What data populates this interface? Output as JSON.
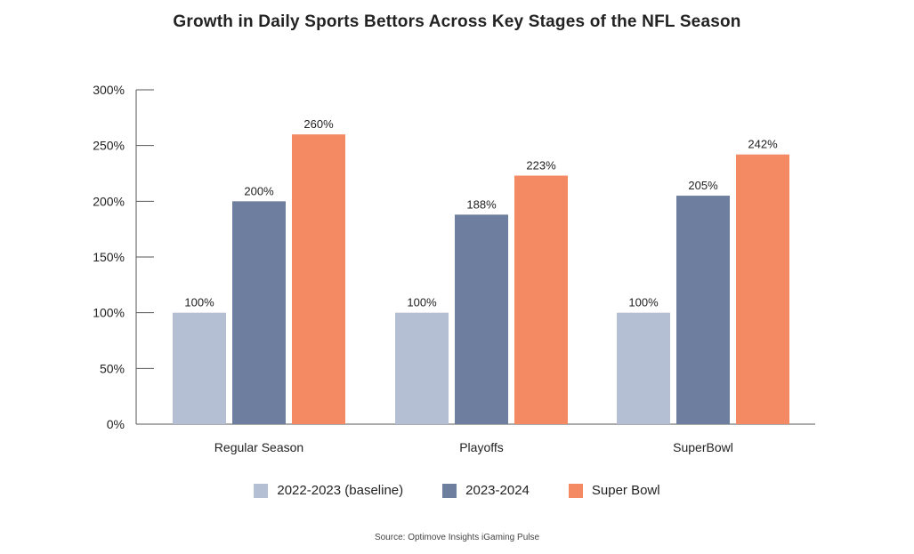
{
  "chart_data": {
    "type": "bar",
    "title": "Growth in Daily Sports Bettors Across Key Stages of the NFL Season",
    "categories": [
      "Regular Season",
      "Playoffs",
      "SuperBowl"
    ],
    "series": [
      {
        "name": "2022-2023 (baseline)",
        "color": "#b4bfd3",
        "values": [
          100,
          100,
          100
        ]
      },
      {
        "name": "2023-2024",
        "color": "#6e7e9e",
        "values": [
          200,
          188,
          205
        ]
      },
      {
        "name": "Super Bowl",
        "color": "#f38a64",
        "values": [
          260,
          223,
          242
        ]
      }
    ],
    "yticks": [
      "0%",
      "50%",
      "100%",
      "150%",
      "200%",
      "250%",
      "300%"
    ],
    "ylim": [
      0,
      300
    ],
    "value_suffix": "%",
    "xlabel": "",
    "ylabel": "",
    "legend_position": "bottom",
    "grid": false,
    "source": "Source: Optimove Insights iGaming Pulse"
  }
}
